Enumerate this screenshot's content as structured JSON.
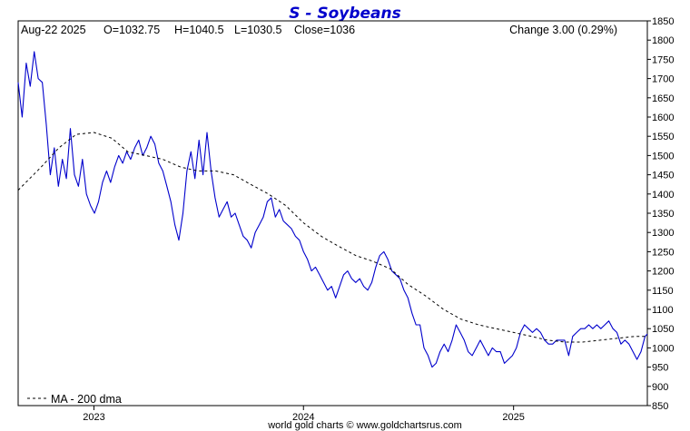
{
  "chart_data": {
    "type": "line",
    "title": "S  -  Soybeans",
    "info": {
      "date": "Aug-22  2025",
      "open": "O=1032.75",
      "high": "H=1040.5",
      "low": "L=1030.5",
      "close": "Close=1036",
      "change": "Change 3.00 (0.29%)"
    },
    "ylim": [
      850,
      1850
    ],
    "y_ticks": [
      850,
      900,
      950,
      1000,
      1050,
      1100,
      1150,
      1200,
      1250,
      1300,
      1350,
      1400,
      1450,
      1500,
      1550,
      1600,
      1650,
      1700,
      1750,
      1800,
      1850
    ],
    "x_start": "2022-08-22",
    "x_end": "2025-08-22",
    "x_ticks": [
      {
        "label": "2023",
        "date": "2023-01-01"
      },
      {
        "label": "2024",
        "date": "2024-01-01"
      },
      {
        "label": "2025",
        "date": "2025-01-01"
      }
    ],
    "grid": false,
    "legend": {
      "label": "MA - 200 dma",
      "placement": "bottom-left"
    },
    "credit": "world gold charts © www.goldchartsrus.com",
    "series": [
      {
        "name": "",
        "color": "#0000cc",
        "points": [
          [
            "2022-08-22",
            1690
          ],
          [
            "2022-08-29",
            1600
          ],
          [
            "2022-09-05",
            1740
          ],
          [
            "2022-09-12",
            1680
          ],
          [
            "2022-09-19",
            1770
          ],
          [
            "2022-09-26",
            1700
          ],
          [
            "2022-10-03",
            1690
          ],
          [
            "2022-10-10",
            1580
          ],
          [
            "2022-10-17",
            1450
          ],
          [
            "2022-10-24",
            1520
          ],
          [
            "2022-10-31",
            1420
          ],
          [
            "2022-11-07",
            1490
          ],
          [
            "2022-11-14",
            1440
          ],
          [
            "2022-11-21",
            1570
          ],
          [
            "2022-11-28",
            1450
          ],
          [
            "2022-12-05",
            1420
          ],
          [
            "2022-12-12",
            1490
          ],
          [
            "2022-12-19",
            1400
          ],
          [
            "2022-12-26",
            1370
          ],
          [
            "2023-01-02",
            1350
          ],
          [
            "2023-01-09",
            1380
          ],
          [
            "2023-01-16",
            1430
          ],
          [
            "2023-01-23",
            1460
          ],
          [
            "2023-01-30",
            1430
          ],
          [
            "2023-02-06",
            1470
          ],
          [
            "2023-02-13",
            1500
          ],
          [
            "2023-02-20",
            1480
          ],
          [
            "2023-02-27",
            1510
          ],
          [
            "2023-03-06",
            1490
          ],
          [
            "2023-03-13",
            1520
          ],
          [
            "2023-03-20",
            1540
          ],
          [
            "2023-03-27",
            1500
          ],
          [
            "2023-04-03",
            1520
          ],
          [
            "2023-04-10",
            1550
          ],
          [
            "2023-04-17",
            1530
          ],
          [
            "2023-04-24",
            1480
          ],
          [
            "2023-05-01",
            1460
          ],
          [
            "2023-05-08",
            1420
          ],
          [
            "2023-05-15",
            1380
          ],
          [
            "2023-05-22",
            1320
          ],
          [
            "2023-05-29",
            1280
          ],
          [
            "2023-06-05",
            1350
          ],
          [
            "2023-06-12",
            1460
          ],
          [
            "2023-06-19",
            1510
          ],
          [
            "2023-06-26",
            1440
          ],
          [
            "2023-07-03",
            1540
          ],
          [
            "2023-07-10",
            1450
          ],
          [
            "2023-07-17",
            1560
          ],
          [
            "2023-07-24",
            1460
          ],
          [
            "2023-07-31",
            1390
          ],
          [
            "2023-08-07",
            1340
          ],
          [
            "2023-08-14",
            1360
          ],
          [
            "2023-08-21",
            1380
          ],
          [
            "2023-08-28",
            1340
          ],
          [
            "2023-09-04",
            1350
          ],
          [
            "2023-09-11",
            1320
          ],
          [
            "2023-09-18",
            1290
          ],
          [
            "2023-09-25",
            1280
          ],
          [
            "2023-10-02",
            1260
          ],
          [
            "2023-10-09",
            1300
          ],
          [
            "2023-10-16",
            1320
          ],
          [
            "2023-10-23",
            1340
          ],
          [
            "2023-10-30",
            1380
          ],
          [
            "2023-11-06",
            1390
          ],
          [
            "2023-11-13",
            1340
          ],
          [
            "2023-11-20",
            1360
          ],
          [
            "2023-11-27",
            1330
          ],
          [
            "2023-12-04",
            1320
          ],
          [
            "2023-12-11",
            1310
          ],
          [
            "2023-12-18",
            1290
          ],
          [
            "2023-12-25",
            1280
          ],
          [
            "2024-01-01",
            1250
          ],
          [
            "2024-01-08",
            1230
          ],
          [
            "2024-01-15",
            1200
          ],
          [
            "2024-01-22",
            1210
          ],
          [
            "2024-01-29",
            1190
          ],
          [
            "2024-02-05",
            1170
          ],
          [
            "2024-02-12",
            1150
          ],
          [
            "2024-02-19",
            1160
          ],
          [
            "2024-02-26",
            1130
          ],
          [
            "2024-03-04",
            1160
          ],
          [
            "2024-03-11",
            1190
          ],
          [
            "2024-03-18",
            1200
          ],
          [
            "2024-03-25",
            1180
          ],
          [
            "2024-04-01",
            1170
          ],
          [
            "2024-04-08",
            1180
          ],
          [
            "2024-04-15",
            1160
          ],
          [
            "2024-04-22",
            1150
          ],
          [
            "2024-04-29",
            1170
          ],
          [
            "2024-05-06",
            1210
          ],
          [
            "2024-05-13",
            1240
          ],
          [
            "2024-05-20",
            1250
          ],
          [
            "2024-05-27",
            1230
          ],
          [
            "2024-06-03",
            1200
          ],
          [
            "2024-06-10",
            1190
          ],
          [
            "2024-06-17",
            1180
          ],
          [
            "2024-06-24",
            1150
          ],
          [
            "2024-07-01",
            1130
          ],
          [
            "2024-07-08",
            1090
          ],
          [
            "2024-07-15",
            1060
          ],
          [
            "2024-07-22",
            1060
          ],
          [
            "2024-07-29",
            1000
          ],
          [
            "2024-08-05",
            980
          ],
          [
            "2024-08-12",
            950
          ],
          [
            "2024-08-19",
            960
          ],
          [
            "2024-08-26",
            990
          ],
          [
            "2024-09-02",
            1010
          ],
          [
            "2024-09-09",
            990
          ],
          [
            "2024-09-16",
            1020
          ],
          [
            "2024-09-23",
            1060
          ],
          [
            "2024-09-30",
            1040
          ],
          [
            "2024-10-07",
            1020
          ],
          [
            "2024-10-14",
            990
          ],
          [
            "2024-10-21",
            980
          ],
          [
            "2024-10-28",
            1000
          ],
          [
            "2024-11-04",
            1020
          ],
          [
            "2024-11-11",
            1000
          ],
          [
            "2024-11-18",
            980
          ],
          [
            "2024-11-25",
            1000
          ],
          [
            "2024-12-02",
            990
          ],
          [
            "2024-12-09",
            990
          ],
          [
            "2024-12-16",
            960
          ],
          [
            "2024-12-23",
            970
          ],
          [
            "2024-12-30",
            980
          ],
          [
            "2025-01-06",
            1000
          ],
          [
            "2025-01-13",
            1040
          ],
          [
            "2025-01-20",
            1060
          ],
          [
            "2025-01-27",
            1050
          ],
          [
            "2025-02-03",
            1040
          ],
          [
            "2025-02-10",
            1050
          ],
          [
            "2025-02-17",
            1040
          ],
          [
            "2025-02-24",
            1020
          ],
          [
            "2025-03-03",
            1010
          ],
          [
            "2025-03-10",
            1010
          ],
          [
            "2025-03-17",
            1020
          ],
          [
            "2025-03-24",
            1020
          ],
          [
            "2025-03-31",
            1020
          ],
          [
            "2025-04-07",
            980
          ],
          [
            "2025-04-14",
            1030
          ],
          [
            "2025-04-21",
            1040
          ],
          [
            "2025-04-28",
            1050
          ],
          [
            "2025-05-05",
            1050
          ],
          [
            "2025-05-12",
            1060
          ],
          [
            "2025-05-19",
            1050
          ],
          [
            "2025-05-26",
            1060
          ],
          [
            "2025-06-02",
            1050
          ],
          [
            "2025-06-09",
            1060
          ],
          [
            "2025-06-16",
            1070
          ],
          [
            "2025-06-23",
            1050
          ],
          [
            "2025-06-30",
            1040
          ],
          [
            "2025-07-07",
            1010
          ],
          [
            "2025-07-14",
            1020
          ],
          [
            "2025-07-21",
            1010
          ],
          [
            "2025-07-28",
            990
          ],
          [
            "2025-08-04",
            970
          ],
          [
            "2025-08-11",
            990
          ],
          [
            "2025-08-18",
            1030
          ],
          [
            "2025-08-22",
            1036
          ]
        ]
      },
      {
        "name": "MA - 200 dma",
        "color": "#000000",
        "dashed": true,
        "points": [
          [
            "2022-08-22",
            1410
          ],
          [
            "2022-10-01",
            1470
          ],
          [
            "2022-11-01",
            1520
          ],
          [
            "2022-12-01",
            1555
          ],
          [
            "2023-01-01",
            1560
          ],
          [
            "2023-02-01",
            1545
          ],
          [
            "2023-03-01",
            1510
          ],
          [
            "2023-04-01",
            1500
          ],
          [
            "2023-05-01",
            1490
          ],
          [
            "2023-06-01",
            1470
          ],
          [
            "2023-07-01",
            1460
          ],
          [
            "2023-08-01",
            1460
          ],
          [
            "2023-09-01",
            1450
          ],
          [
            "2023-10-01",
            1425
          ],
          [
            "2023-11-01",
            1400
          ],
          [
            "2023-12-01",
            1370
          ],
          [
            "2024-01-01",
            1325
          ],
          [
            "2024-02-01",
            1290
          ],
          [
            "2024-03-01",
            1265
          ],
          [
            "2024-04-01",
            1240
          ],
          [
            "2024-05-01",
            1225
          ],
          [
            "2024-06-01",
            1205
          ],
          [
            "2024-07-01",
            1165
          ],
          [
            "2024-08-01",
            1135
          ],
          [
            "2024-09-01",
            1100
          ],
          [
            "2024-10-01",
            1075
          ],
          [
            "2024-11-01",
            1060
          ],
          [
            "2024-12-01",
            1050
          ],
          [
            "2025-01-01",
            1040
          ],
          [
            "2025-02-01",
            1030
          ],
          [
            "2025-03-01",
            1020
          ],
          [
            "2025-04-01",
            1015
          ],
          [
            "2025-05-01",
            1015
          ],
          [
            "2025-06-01",
            1020
          ],
          [
            "2025-07-01",
            1025
          ],
          [
            "2025-08-01",
            1030
          ],
          [
            "2025-08-22",
            1030
          ]
        ]
      }
    ]
  }
}
